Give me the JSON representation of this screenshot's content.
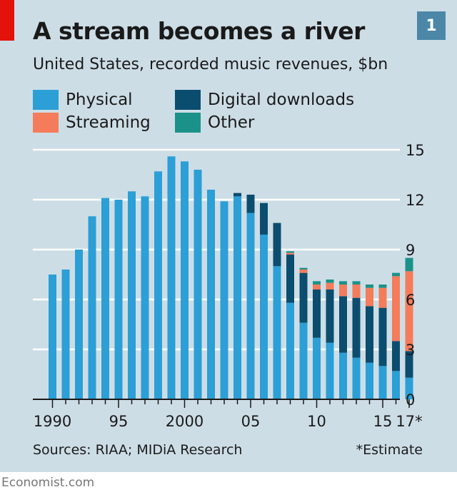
{
  "header": {
    "title": "A stream becomes a river",
    "subtitle": "United States, recorded music revenues, $bn",
    "badge": "1"
  },
  "footer": {
    "source": "Sources: RIAA; MIDiA Research",
    "footnote": "*Estimate",
    "brand": "Economist.com"
  },
  "colors": {
    "physical": "#2b9fd6",
    "digital": "#0b4d6e",
    "streaming": "#f47c5a",
    "other": "#1b9289",
    "gridline": "#ffffff",
    "axis": "#1a1a1a",
    "background": "#cddde6",
    "accent": "#e3120b"
  },
  "chart_data": {
    "type": "bar",
    "stacked": true,
    "title": "A stream becomes a river",
    "subtitle": "United States, recorded music revenues, $bn",
    "ylim": [
      0,
      15
    ],
    "yticks": [
      0,
      3,
      6,
      9,
      12,
      15
    ],
    "y_axis_side": "right",
    "grid": true,
    "legend_placement": "top-left",
    "x": [
      1990,
      1991,
      1992,
      1993,
      1994,
      1995,
      1996,
      1997,
      1998,
      1999,
      2000,
      2001,
      2002,
      2003,
      2004,
      2005,
      2006,
      2007,
      2008,
      2009,
      2010,
      2011,
      2012,
      2013,
      2014,
      2015,
      2016,
      2017
    ],
    "xticks": [
      {
        "x": 1990,
        "label": "1990"
      },
      {
        "x": 1995,
        "label": "95"
      },
      {
        "x": 2000,
        "label": "2000"
      },
      {
        "x": 2005,
        "label": "05"
      },
      {
        "x": 2010,
        "label": "10"
      },
      {
        "x": 2015,
        "label": "15"
      },
      {
        "x": 2017,
        "label": "17*"
      }
    ],
    "series": [
      {
        "name": "Physical",
        "key": "physical",
        "values": [
          7.5,
          7.8,
          9.0,
          11.0,
          12.1,
          12.0,
          12.5,
          12.2,
          13.7,
          14.6,
          14.3,
          13.8,
          12.6,
          11.9,
          12.2,
          11.2,
          9.9,
          8.0,
          5.8,
          4.6,
          3.7,
          3.4,
          2.8,
          2.5,
          2.2,
          2.0,
          1.7,
          1.3
        ]
      },
      {
        "name": "Digital downloads",
        "key": "digital",
        "values": [
          0,
          0,
          0,
          0,
          0,
          0,
          0,
          0,
          0,
          0,
          0,
          0,
          0,
          0,
          0.2,
          1.1,
          1.9,
          2.6,
          2.9,
          3.0,
          2.9,
          3.2,
          3.4,
          3.6,
          3.4,
          3.5,
          1.8,
          1.6
        ]
      },
      {
        "name": "Streaming",
        "key": "streaming",
        "values": [
          0,
          0,
          0,
          0,
          0,
          0,
          0,
          0,
          0,
          0,
          0,
          0,
          0,
          0,
          0,
          0,
          0,
          0,
          0.1,
          0.2,
          0.3,
          0.4,
          0.7,
          0.8,
          1.1,
          1.2,
          3.9,
          4.8
        ]
      },
      {
        "name": "Other",
        "key": "other",
        "values": [
          0,
          0,
          0,
          0,
          0,
          0,
          0,
          0,
          0,
          0,
          0,
          0,
          0,
          0,
          0,
          0,
          0,
          0,
          0.1,
          0.1,
          0.2,
          0.2,
          0.2,
          0.2,
          0.2,
          0.2,
          0.2,
          0.8
        ]
      }
    ]
  }
}
